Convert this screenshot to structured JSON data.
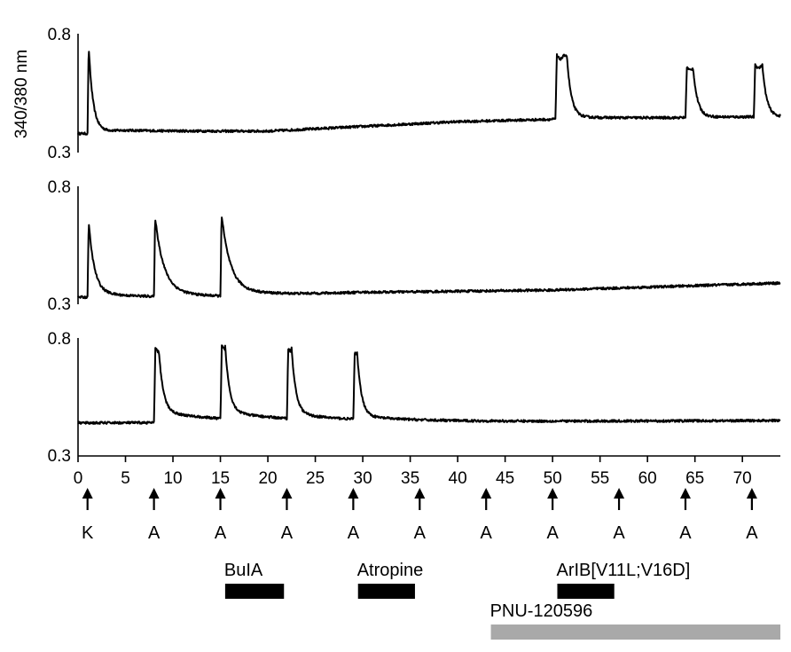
{
  "chart_data": {
    "type": "line",
    "y_axis_title": "340/380 nm",
    "x_axis": {
      "range": [
        0,
        74
      ],
      "ticks": [
        0,
        5,
        10,
        15,
        20,
        25,
        30,
        35,
        40,
        45,
        50,
        55,
        60,
        65,
        70
      ]
    },
    "panels": [
      {
        "ylim": [
          0.3,
          0.8
        ],
        "ytick_labels": [
          "0.8",
          "0.3"
        ],
        "baseline": 0.38,
        "peaks": [
          {
            "t": 1,
            "peak": 0.75,
            "width": 0.15,
            "settle": 0.39
          },
          {
            "t": 50.3,
            "peak": 0.71,
            "plateau": 1.2,
            "settle": 0.45
          },
          {
            "t": 64.0,
            "peak": 0.66,
            "plateau": 0.8,
            "settle": 0.45
          },
          {
            "t": 71.2,
            "peak": 0.67,
            "plateau": 0.9,
            "settle": 0.45
          }
        ],
        "drift": [
          [
            0,
            0.38
          ],
          [
            1,
            0.38
          ],
          [
            5,
            0.39
          ],
          [
            20,
            0.39
          ],
          [
            30,
            0.41
          ],
          [
            40,
            0.43
          ],
          [
            50,
            0.44
          ],
          [
            74,
            0.45
          ]
        ]
      },
      {
        "ylim": [
          0.3,
          0.8
        ],
        "ytick_labels": [
          "0.8",
          "0.3"
        ],
        "baseline": 0.33,
        "peaks": [
          {
            "t": 1,
            "peak": 0.65,
            "width": 0.3,
            "settle": 0.35
          },
          {
            "t": 8,
            "peak": 0.67,
            "width": 0.6,
            "settle": 0.36
          },
          {
            "t": 15,
            "peak": 0.68,
            "width": 0.6,
            "settle": 0.37
          }
        ],
        "drift": [
          [
            0,
            0.33
          ],
          [
            15,
            0.33
          ],
          [
            30,
            0.35
          ],
          [
            50,
            0.36
          ],
          [
            74,
            0.39
          ]
        ]
      },
      {
        "ylim": [
          0.3,
          0.8
        ],
        "ytick_labels": [
          "0.8",
          "0.3"
        ],
        "baseline": 0.44,
        "peaks": [
          {
            "t": 8,
            "peak": 0.76,
            "plateau": 0.5,
            "settle": 0.49
          },
          {
            "t": 15,
            "peak": 0.77,
            "plateau": 0.5,
            "settle": 0.49
          },
          {
            "t": 22,
            "peak": 0.76,
            "plateau": 0.5,
            "settle": 0.48
          },
          {
            "t": 29,
            "peak": 0.74,
            "plateau": 0.4,
            "settle": 0.47
          }
        ],
        "drift": [
          [
            0,
            0.44
          ],
          [
            74,
            0.45
          ]
        ]
      }
    ],
    "stimuli": [
      {
        "t": 1,
        "label": "K"
      },
      {
        "t": 8,
        "label": "A"
      },
      {
        "t": 15,
        "label": "A"
      },
      {
        "t": 22,
        "label": "A"
      },
      {
        "t": 29,
        "label": "A"
      },
      {
        "t": 36,
        "label": "A"
      },
      {
        "t": 43,
        "label": "A"
      },
      {
        "t": 50,
        "label": "A"
      },
      {
        "t": 57,
        "label": "A"
      },
      {
        "t": 64,
        "label": "A"
      },
      {
        "t": 71,
        "label": "A"
      }
    ],
    "treatments": [
      {
        "label": "BuIA",
        "start": 15.5,
        "end": 21.7,
        "color": "#000000"
      },
      {
        "label": "Atropine",
        "start": 29.5,
        "end": 35.5,
        "color": "#000000"
      },
      {
        "label": "ArIB[V11L;V16D]",
        "start": 50.5,
        "end": 56.5,
        "color": "#000000"
      },
      {
        "label": "PNU-120596",
        "start": 43.5,
        "end": 74,
        "color": "#a9a9a9"
      }
    ]
  }
}
